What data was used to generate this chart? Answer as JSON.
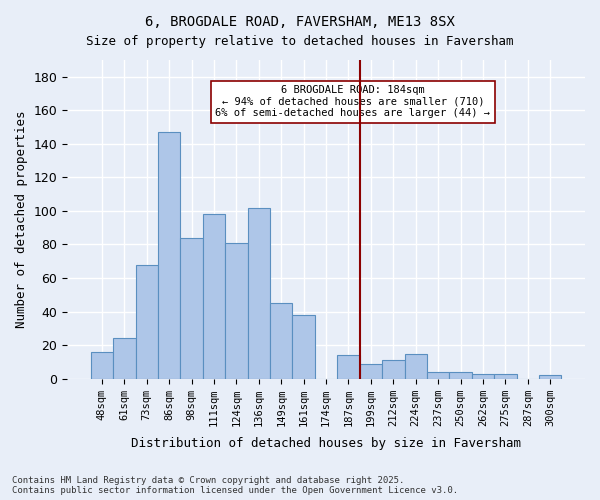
{
  "title1": "6, BROGDALE ROAD, FAVERSHAM, ME13 8SX",
  "title2": "Size of property relative to detached houses in Faversham",
  "xlabel": "Distribution of detached houses by size in Faversham",
  "ylabel": "Number of detached properties",
  "categories": [
    "48sqm",
    "61sqm",
    "73sqm",
    "86sqm",
    "98sqm",
    "111sqm",
    "124sqm",
    "136sqm",
    "149sqm",
    "161sqm",
    "174sqm",
    "187sqm",
    "199sqm",
    "212sqm",
    "224sqm",
    "237sqm",
    "250sqm",
    "262sqm",
    "275sqm",
    "287sqm",
    "300sqm"
  ],
  "values": [
    16,
    24,
    68,
    147,
    84,
    98,
    81,
    102,
    45,
    38,
    0,
    14,
    9,
    11,
    15,
    4,
    4,
    3,
    3,
    0,
    2
  ],
  "bar_color": "#aec6e8",
  "bar_edge_color": "#5a8fc0",
  "bg_color": "#e8eef8",
  "grid_color": "#ffffff",
  "vline_x": 11.5,
  "vline_color": "#8b0000",
  "annotation_text": "6 BROGDALE ROAD: 184sqm\n← 94% of detached houses are smaller (710)\n6% of semi-detached houses are larger (44) →",
  "annotation_box_color": "#ffffff",
  "annotation_box_edgecolor": "#8b0000",
  "footer1": "Contains HM Land Registry data © Crown copyright and database right 2025.",
  "footer2": "Contains public sector information licensed under the Open Government Licence v3.0.",
  "ylim": [
    0,
    190
  ],
  "yticks": [
    0,
    20,
    40,
    60,
    80,
    100,
    120,
    140,
    160,
    180
  ]
}
